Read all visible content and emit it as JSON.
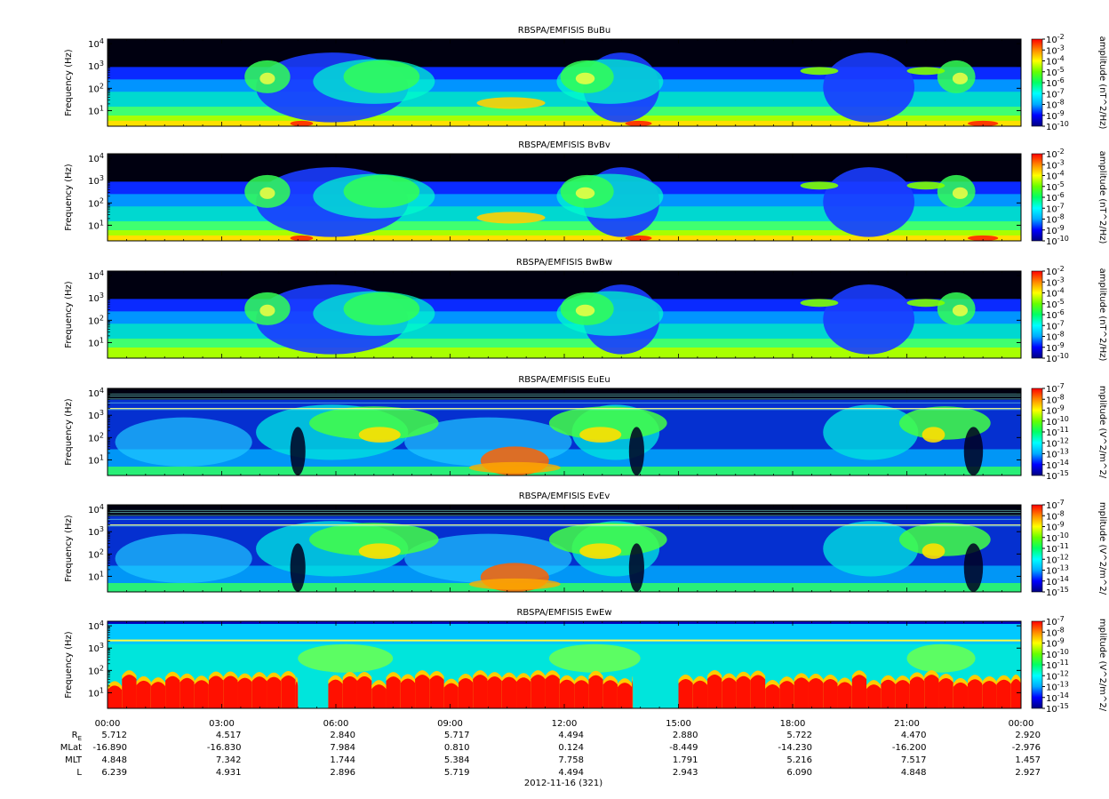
{
  "chart_data": {
    "type": "heatmap",
    "panels": [
      {
        "title": "RBSPA/EMFISIS  BuBu",
        "ylabel": "Frequency (Hz)",
        "cbar_label": "amplitude (nT^2/Hz)",
        "cbar_ticks": [
          "10^-2",
          "10^-3",
          "10^-4",
          "10^-5",
          "10^-6",
          "10^-7",
          "10^-8",
          "10^-9",
          "10^-10"
        ],
        "kind": "B"
      },
      {
        "title": "RBSPA/EMFISIS  BvBv",
        "ylabel": "Frequency (Hz)",
        "cbar_label": "amplitude (nT^2/Hz)",
        "cbar_ticks": [
          "10^-2",
          "10^-3",
          "10^-4",
          "10^-5",
          "10^-6",
          "10^-7",
          "10^-8",
          "10^-9",
          "10^-10"
        ],
        "kind": "B"
      },
      {
        "title": "RBSPA/EMFISIS  BwBw",
        "ylabel": "Frequency (Hz)",
        "cbar_label": "amplitude (nT^2/Hz)",
        "cbar_ticks": [
          "10^-2",
          "10^-3",
          "10^-4",
          "10^-5",
          "10^-6",
          "10^-7",
          "10^-8",
          "10^-9",
          "10^-10"
        ],
        "kind": "B"
      },
      {
        "title": "RBSPA/EMFISIS  EuEu",
        "ylabel": "Frequency (Hz)",
        "cbar_label": "mplitude (V^2/m^2/",
        "cbar_ticks": [
          "10^-7",
          "10^-8",
          "10^-9",
          "10^-10",
          "10^-11",
          "10^-12",
          "10^-13",
          "10^-14",
          "10^-15"
        ],
        "kind": "E"
      },
      {
        "title": "RBSPA/EMFISIS  EvEv",
        "ylabel": "Frequency (Hz)",
        "cbar_label": "mplitude (V^2/m^2/",
        "cbar_ticks": [
          "10^-7",
          "10^-8",
          "10^-9",
          "10^-10",
          "10^-11",
          "10^-12",
          "10^-13",
          "10^-14",
          "10^-15"
        ],
        "kind": "E"
      },
      {
        "title": "RBSPA/EMFISIS  EwEw",
        "ylabel": "Frequency (Hz)",
        "cbar_label": "mplitude (V^2/m^2/",
        "cbar_ticks": [
          "10^-7",
          "10^-8",
          "10^-9",
          "10^-10",
          "10^-11",
          "10^-12",
          "10^-13",
          "10^-14",
          "10^-15"
        ],
        "kind": "Ew"
      }
    ],
    "yticks": [
      "10^4",
      "10^3",
      "10^2",
      "10^1"
    ],
    "ylim_hz": [
      2,
      16000
    ],
    "yscale": "log",
    "xlim": [
      "00:00",
      "00:00"
    ],
    "xticks": [
      "00:00",
      "03:00",
      "06:00",
      "09:00",
      "12:00",
      "15:00",
      "18:00",
      "21:00",
      "00:00"
    ],
    "ephemeris": {
      "rows": [
        {
          "label": "R",
          "sub": "E",
          "values": [
            "5.712",
            "4.517",
            "2.840",
            "5.717",
            "4.494",
            "2.880",
            "5.722",
            "4.470",
            "2.920"
          ]
        },
        {
          "label": "MLat",
          "values": [
            "-16.890",
            "-16.830",
            "7.984",
            "0.810",
            "0.124",
            "-8.449",
            "-14.230",
            "-16.200",
            "-2.976"
          ]
        },
        {
          "label": "MLT",
          "values": [
            "4.848",
            "7.342",
            "1.744",
            "5.384",
            "7.758",
            "1.791",
            "5.216",
            "7.517",
            "1.457"
          ]
        },
        {
          "label": "L",
          "values": [
            "6.239",
            "4.931",
            "2.896",
            "5.719",
            "4.494",
            "2.943",
            "6.090",
            "4.848",
            "2.927"
          ]
        }
      ]
    },
    "date": "2012-11-16 (321)",
    "colormap": [
      "#000080",
      "#0000ff",
      "#00aaff",
      "#00ffff",
      "#00ff66",
      "#66ff00",
      "#ffff00",
      "#ff8800",
      "#ff0000"
    ]
  }
}
